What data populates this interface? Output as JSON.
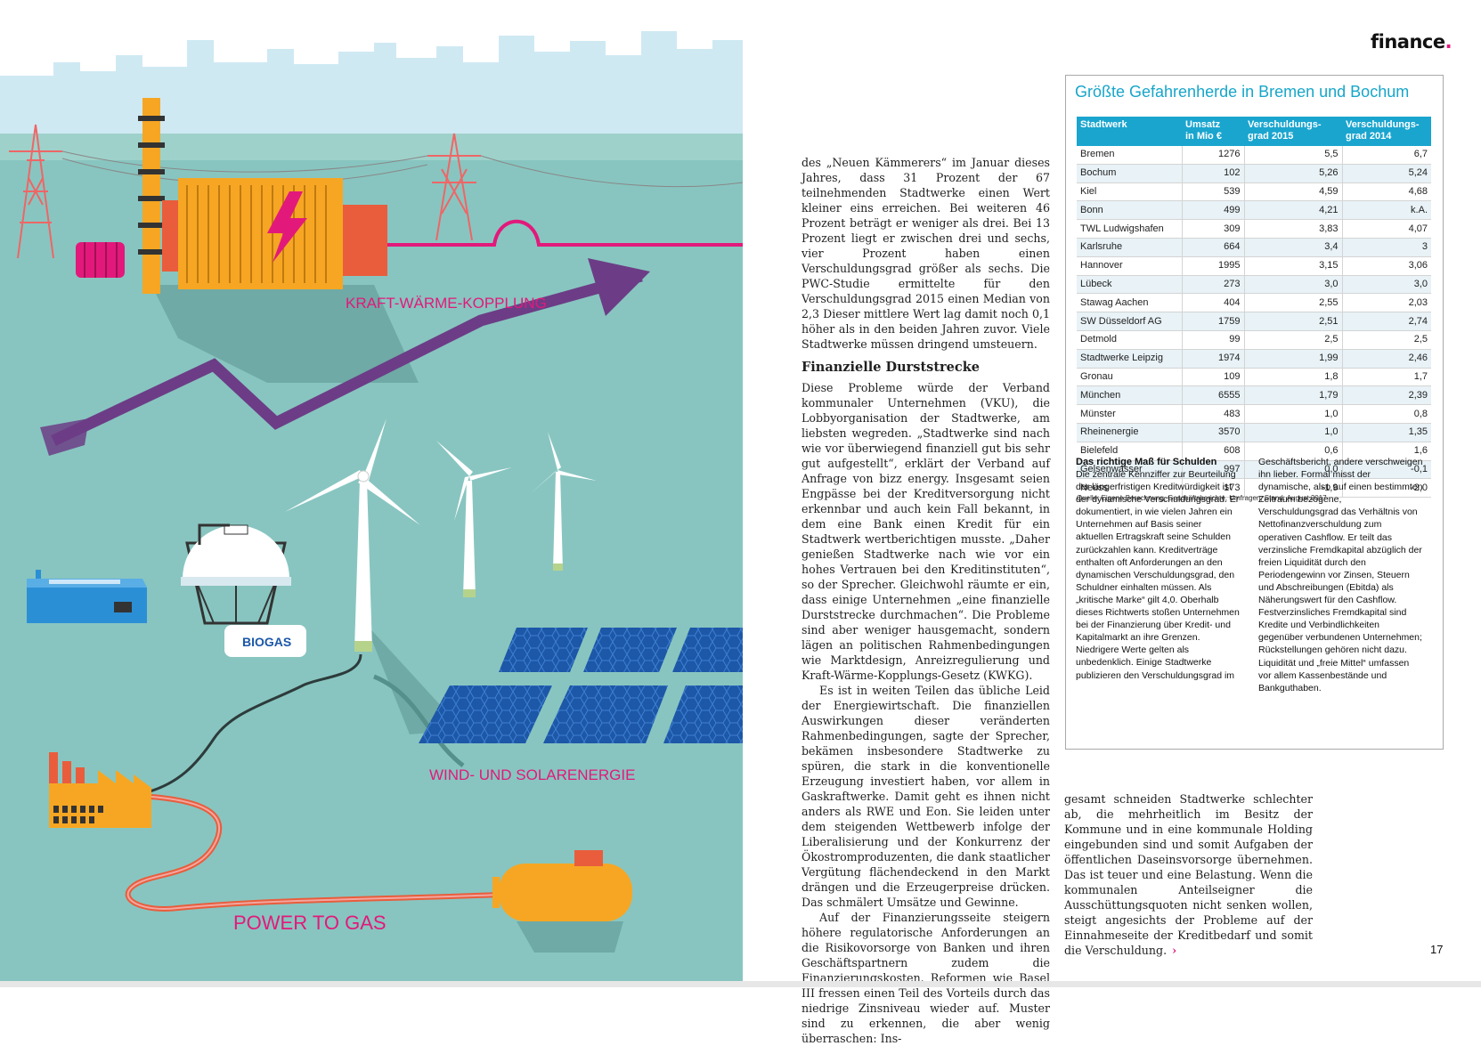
{
  "brand": {
    "name": "finance",
    "dot": "."
  },
  "page_number": "17",
  "illustration": {
    "labels": {
      "kwk": "KRAFT-WÄRME-KOPPLUNG",
      "wind_solar": "WIND- UND SOLARENERGIE",
      "power_to_gas": "POWER TO GAS",
      "biogas": "BIOGAS"
    },
    "colors": {
      "sky": "#cfe9f3",
      "sea": "#88c5c0",
      "ground": "#7fc0bb",
      "orange": "#f6a623",
      "pink": "#e2197b",
      "purple": "#6c3d86",
      "panel": "#1c57a8",
      "turbine": "#ffffff",
      "shadow": "#5f9e9a"
    }
  },
  "article": {
    "col1_p1": "des „Neuen Kämmerers“ im Januar dieses Jahres, dass 31 Prozent der 67 teilnehmenden Stadtwerke einen Wert kleiner eins erreichen. Bei weiteren 46 Prozent beträgt er weniger als drei. Bei 13 Prozent liegt er zwischen drei und sechs, vier Prozent haben einen Verschuldungsgrad größer als sechs. Die PWC-Studie ermittelte für den Verschuldungsgrad 2015 einen Median von 2,3 Dieser mittlere Wert lag damit noch 0,1 höher als in den beiden Jahren zuvor. Viele Stadtwerke müssen dringend umsteuern.",
    "heading": "Finanzielle Durststrecke",
    "col1_p2": "Diese Probleme würde der Verband kommunaler Unternehmen (VKU), die Lobbyorganisation der Stadtwerke, am liebsten wegreden. „Stadtwerke sind nach wie vor überwiegend finanziell gut bis sehr gut aufgestellt“, erklärt der Verband auf Anfrage von bizz energy. Insgesamt seien Engpässe bei der Kreditversorgung nicht erkennbar und auch kein Fall bekannt, in dem eine Bank einen Kredit für ein Stadtwerk wertberichtigen musste. „Daher genießen Stadtwerke nach wie vor ein hohes Vertrauen bei den Kreditinstituten“, so der Sprecher. Gleichwohl räumte er ein, dass einige Unternehmen „eine finanzielle Durststrecke durchmachen“. Die Probleme sind aber weniger hausgemacht, sondern lägen an politischen Rahmenbedingungen wie Marktdesign, Anreizregulierung und Kraft-Wärme-Kopplungs-Gesetz (KWKG).",
    "col1_p3": "Es ist in weiten Teilen das übliche Leid der Energiewirtschaft. Die finanziellen Auswirkungen dieser veränderten Rahmenbedingungen, sagte der Sprecher, bekämen insbesondere Stadtwerke zu spüren, die stark in die konventionelle Erzeugung investiert haben, vor allem in Gaskraftwerke. Damit geht es ihnen nicht anders als RWE und Eon. Sie leiden unter dem steigenden Wettbewerb infolge der Liberalisierung und der Konkurrenz der Ökostromproduzenten, die dank staatlicher Vergütung flächendeckend in den Markt drängen und die Erzeugerpreise drücken. Das schmälert Umsätze und Gewinne.",
    "col1_p4": "Auf der Finanzierungsseite steigern höhere regulatorische Anforderungen an die Risikovorsorge von Banken und ihren Geschäftspartnern zudem die Finanzierungskosten. Reformen wie Basel III fressen einen Teil des Vorteils durch das niedrige Zinsniveau wieder auf. Muster sind zu erkennen, die aber wenig überraschen: Ins-",
    "col2_p1": "gesamt schneiden Stadtwerke schlechter ab, die mehrheitlich im Besitz der Kommune und in eine kommunale Holding eingebunden sind und somit Aufgaben der öffentlichen Daseinsvorsorge übernehmen. Das ist teuer und eine Belastung. Wenn die kommunalen Anteilseigner die Ausschüttungsquoten nicht senken wollen, steigt angesichts der Probleme auf der Einnahmeseite der Kreditbedarf und somit die Verschuldung.",
    "end_mark": "›"
  },
  "infobox": {
    "title": "Größte Gefahrenherde in Bremen und Bochum",
    "headers": [
      {
        "l1": "Stadtwerk",
        "l2": ""
      },
      {
        "l1": "Umsatz",
        "l2": "in Mio €"
      },
      {
        "l1": "Verschuldungs-",
        "l2": "grad 2015"
      },
      {
        "l1": "Verschuldungs-",
        "l2": "grad 2014"
      }
    ],
    "rows": [
      [
        "Bremen",
        "1276",
        "5,5",
        "6,7"
      ],
      [
        "Bochum",
        "102",
        "5,26",
        "5,24"
      ],
      [
        "Kiel",
        "539",
        "4,59",
        "4,68"
      ],
      [
        "Bonn",
        "499",
        "4,21",
        "k.A."
      ],
      [
        "TWL Ludwigshafen",
        "309",
        "3,83",
        "4,07"
      ],
      [
        "Karlsruhe",
        "664",
        "3,4",
        "3"
      ],
      [
        "Hannover",
        "1995",
        "3,15",
        "3,06"
      ],
      [
        "Lübeck",
        "273",
        "3,0",
        "3,0"
      ],
      [
        "Stawag Aachen",
        "404",
        "2,55",
        "2,03"
      ],
      [
        "SW Düsseldorf AG",
        "1759",
        "2,51",
        "2,74"
      ],
      [
        "Detmold",
        "99",
        "2,5",
        "2,5"
      ],
      [
        "Stadtwerke Leipzig",
        "1974",
        "1,99",
        "2,46"
      ],
      [
        "Gronau",
        "109",
        "1,8",
        "1,7"
      ],
      [
        "München",
        "6555",
        "1,79",
        "2,39"
      ],
      [
        "Münster",
        "483",
        "1,0",
        "0,8"
      ],
      [
        "Rheinenergie",
        "3570",
        "1,0",
        "1,35"
      ],
      [
        "Bielefeld",
        "608",
        "0,6",
        "1,6"
      ],
      [
        "Gelsenwasser",
        "997",
        "0,0",
        "-0,1"
      ],
      [
        "Neuss",
        "173",
        "-1,9",
        "-2,0"
      ]
    ],
    "source": "Quelle: Eigene Berechnung,  Geschäftsberichte, Umfragen, Stand: August 2017",
    "sidebar_heading": "Das richtige Maß für Schulden",
    "sidebar_col1": "Die zentrale Kennziffer zur Beurteilung der längerfristigen Kreditwürdigkeit ist der dynamische Verschuldungsgrad. Er dokumentiert, in wie vielen Jahren ein Unternehmen auf Basis seiner aktuellen Ertragskraft seine Schulden zurückzahlen kann. Kreditverträge enthalten oft Anforderungen an den dynamischen Verschuldungsgrad, den Schuldner einhalten müssen. Als „kritische Marke“ gilt 4,0. Oberhalb dieses Richtwerts stoßen Unternehmen bei der Finanzierung über Kredit- und Kapitalmarkt an ihre Grenzen. Niedrigere Werte gelten als unbedenklich. Einige Stadtwerke publizieren den Verschuldungsgrad im",
    "sidebar_col2": "Geschäftsbericht, andere verschweigen ihn lieber. Formal misst der dynamische, also auf einen bestimmten Zeitraum bezogene, Verschuldungsgrad das Verhältnis von Nettofinanzverschuldung zum operativen Cashflow. Er teilt das verzinsliche Fremdkapital abzüglich der freien Liquidität durch den Periodengewinn vor Zinsen, Steuern und Abschreibungen (Ebitda) als Näherungswert für den Cashflow. Festverzinsliches Fremdkapital sind Kredite und Verbindlichkeiten gegenüber verbundenen Unternehmen; Rückstellungen gehören nicht dazu. Liquidität und „freie Mittel“ umfassen vor allem Kassenbestände und Bankguthaben."
  }
}
